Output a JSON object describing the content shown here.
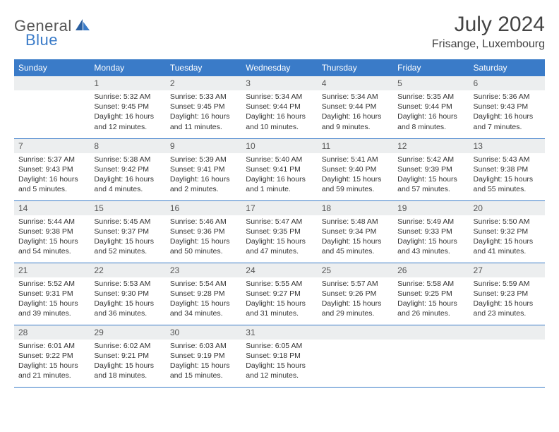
{
  "logo": {
    "part1": "General",
    "part2": "Blue"
  },
  "title": "July 2024",
  "location": "Frisange, Luxembourg",
  "header_bg": "#3a7bc8",
  "daynum_bg": "#eceeef",
  "weekdays": [
    "Sunday",
    "Monday",
    "Tuesday",
    "Wednesday",
    "Thursday",
    "Friday",
    "Saturday"
  ],
  "weeks": [
    [
      null,
      {
        "n": "1",
        "sr": "5:32 AM",
        "ss": "9:45 PM",
        "dl": "16 hours and 12 minutes."
      },
      {
        "n": "2",
        "sr": "5:33 AM",
        "ss": "9:45 PM",
        "dl": "16 hours and 11 minutes."
      },
      {
        "n": "3",
        "sr": "5:34 AM",
        "ss": "9:44 PM",
        "dl": "16 hours and 10 minutes."
      },
      {
        "n": "4",
        "sr": "5:34 AM",
        "ss": "9:44 PM",
        "dl": "16 hours and 9 minutes."
      },
      {
        "n": "5",
        "sr": "5:35 AM",
        "ss": "9:44 PM",
        "dl": "16 hours and 8 minutes."
      },
      {
        "n": "6",
        "sr": "5:36 AM",
        "ss": "9:43 PM",
        "dl": "16 hours and 7 minutes."
      }
    ],
    [
      {
        "n": "7",
        "sr": "5:37 AM",
        "ss": "9:43 PM",
        "dl": "16 hours and 5 minutes."
      },
      {
        "n": "8",
        "sr": "5:38 AM",
        "ss": "9:42 PM",
        "dl": "16 hours and 4 minutes."
      },
      {
        "n": "9",
        "sr": "5:39 AM",
        "ss": "9:41 PM",
        "dl": "16 hours and 2 minutes."
      },
      {
        "n": "10",
        "sr": "5:40 AM",
        "ss": "9:41 PM",
        "dl": "16 hours and 1 minute."
      },
      {
        "n": "11",
        "sr": "5:41 AM",
        "ss": "9:40 PM",
        "dl": "15 hours and 59 minutes."
      },
      {
        "n": "12",
        "sr": "5:42 AM",
        "ss": "9:39 PM",
        "dl": "15 hours and 57 minutes."
      },
      {
        "n": "13",
        "sr": "5:43 AM",
        "ss": "9:38 PM",
        "dl": "15 hours and 55 minutes."
      }
    ],
    [
      {
        "n": "14",
        "sr": "5:44 AM",
        "ss": "9:38 PM",
        "dl": "15 hours and 54 minutes."
      },
      {
        "n": "15",
        "sr": "5:45 AM",
        "ss": "9:37 PM",
        "dl": "15 hours and 52 minutes."
      },
      {
        "n": "16",
        "sr": "5:46 AM",
        "ss": "9:36 PM",
        "dl": "15 hours and 50 minutes."
      },
      {
        "n": "17",
        "sr": "5:47 AM",
        "ss": "9:35 PM",
        "dl": "15 hours and 47 minutes."
      },
      {
        "n": "18",
        "sr": "5:48 AM",
        "ss": "9:34 PM",
        "dl": "15 hours and 45 minutes."
      },
      {
        "n": "19",
        "sr": "5:49 AM",
        "ss": "9:33 PM",
        "dl": "15 hours and 43 minutes."
      },
      {
        "n": "20",
        "sr": "5:50 AM",
        "ss": "9:32 PM",
        "dl": "15 hours and 41 minutes."
      }
    ],
    [
      {
        "n": "21",
        "sr": "5:52 AM",
        "ss": "9:31 PM",
        "dl": "15 hours and 39 minutes."
      },
      {
        "n": "22",
        "sr": "5:53 AM",
        "ss": "9:30 PM",
        "dl": "15 hours and 36 minutes."
      },
      {
        "n": "23",
        "sr": "5:54 AM",
        "ss": "9:28 PM",
        "dl": "15 hours and 34 minutes."
      },
      {
        "n": "24",
        "sr": "5:55 AM",
        "ss": "9:27 PM",
        "dl": "15 hours and 31 minutes."
      },
      {
        "n": "25",
        "sr": "5:57 AM",
        "ss": "9:26 PM",
        "dl": "15 hours and 29 minutes."
      },
      {
        "n": "26",
        "sr": "5:58 AM",
        "ss": "9:25 PM",
        "dl": "15 hours and 26 minutes."
      },
      {
        "n": "27",
        "sr": "5:59 AM",
        "ss": "9:23 PM",
        "dl": "15 hours and 23 minutes."
      }
    ],
    [
      {
        "n": "28",
        "sr": "6:01 AM",
        "ss": "9:22 PM",
        "dl": "15 hours and 21 minutes."
      },
      {
        "n": "29",
        "sr": "6:02 AM",
        "ss": "9:21 PM",
        "dl": "15 hours and 18 minutes."
      },
      {
        "n": "30",
        "sr": "6:03 AM",
        "ss": "9:19 PM",
        "dl": "15 hours and 15 minutes."
      },
      {
        "n": "31",
        "sr": "6:05 AM",
        "ss": "9:18 PM",
        "dl": "15 hours and 12 minutes."
      },
      null,
      null,
      null
    ]
  ],
  "labels": {
    "sunrise": "Sunrise:",
    "sunset": "Sunset:",
    "daylight": "Daylight:"
  }
}
